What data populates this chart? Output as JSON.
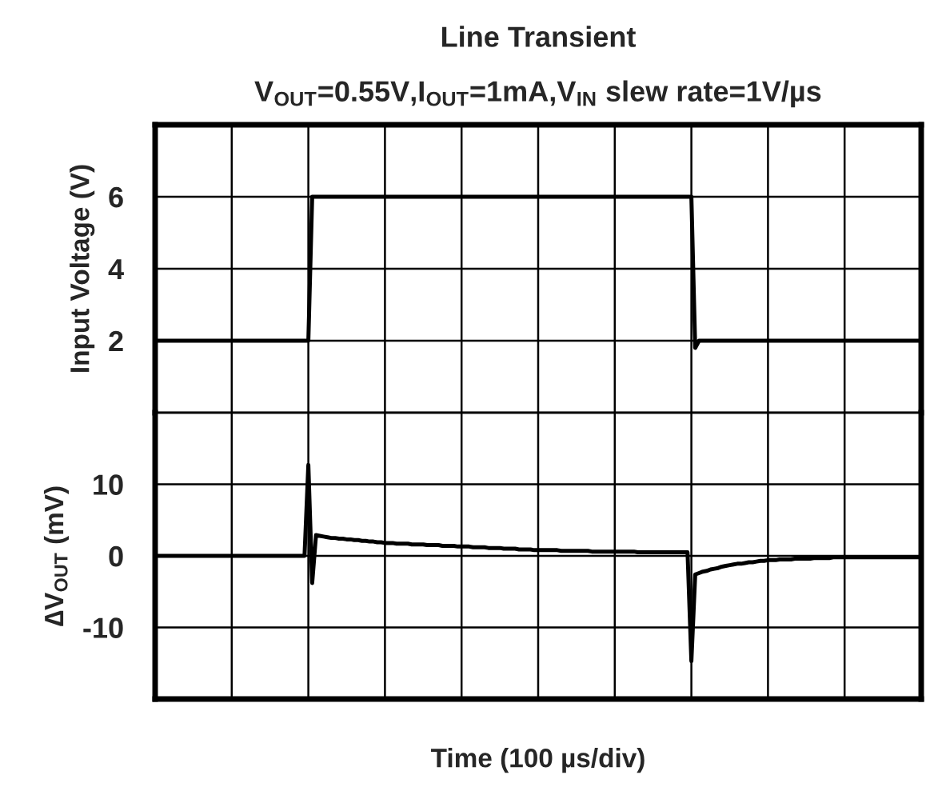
{
  "chart_data": [
    {
      "type": "line",
      "title": "Line Transient",
      "subtitle": "V$_{OUT}$=0.55V,I$_{OUT}$=1mA,V$_{IN}$ slew rate=1V/µs",
      "ylabel": "Input Voltage (V)",
      "categories": [
        null,
        null,
        null,
        null,
        null,
        null,
        null,
        null,
        null,
        null,
        null,
        null,
        null,
        null,
        null,
        null,
        null,
        null,
        null,
        null,
        null,
        null,
        null,
        null,
        null,
        null,
        null,
        null,
        null,
        null,
        null,
        null,
        null,
        null,
        null,
        null,
        null,
        null,
        null,
        null,
        null,
        null,
        null,
        null,
        null,
        null,
        null,
        null,
        null,
        null,
        null,
        null,
        null,
        null,
        null,
        null,
        null,
        null,
        null,
        null,
        null,
        null,
        null,
        null,
        null,
        null,
        null,
        null,
        null,
        null,
        null,
        null,
        null,
        null,
        null,
        null,
        null,
        null,
        null,
        null,
        null,
        null,
        null,
        null,
        null,
        null,
        null,
        null,
        null,
        null,
        null,
        null,
        null,
        null,
        null,
        null,
        null,
        null,
        null,
        null,
        null,
        null,
        null,
        null,
        null,
        null,
        null,
        null,
        null,
        null,
        null,
        null,
        null,
        null,
        null,
        null,
        null,
        null,
        null,
        null,
        null,
        null,
        null,
        null,
        null,
        null,
        null,
        null,
        null,
        null,
        null,
        null,
        null,
        null,
        null,
        null,
        null,
        null,
        null,
        null,
        null,
        null,
        null,
        null,
        null,
        null,
        null,
        null,
        null,
        null,
        null,
        null,
        null,
        null,
        null,
        null,
        null,
        null,
        null,
        null,
        null,
        null,
        null,
        null,
        null,
        null,
        null,
        null,
        null,
        null,
        null,
        null,
        null,
        null,
        null,
        null,
        null,
        null,
        null,
        null,
        null,
        null,
        null,
        null,
        null,
        null,
        null,
        null,
        null,
        null,
        null,
        null,
        null,
        null,
        null,
        null,
        null,
        null,
        null,
        null,
        null
      ],
      "ylim": [
        0,
        8
      ],
      "yticks": [
        {
          "value": 0,
          "label": null
        },
        2,
        4,
        6,
        {
          "value": 8,
          "label": null
        }
      ],
      "tick_labels": "y",
      "grid": true,
      "series": [
        {
          "color": "#000000",
          "values": [
            2,
            2,
            2,
            2,
            2,
            2,
            2,
            2,
            2,
            2,
            2,
            2,
            2,
            2,
            2,
            2,
            2,
            2,
            2,
            2,
            2,
            2,
            2,
            2,
            2,
            2,
            2,
            2,
            2,
            2,
            2,
            2,
            2,
            2,
            2,
            2,
            2,
            2,
            2,
            2,
            2,
            6,
            6,
            6,
            6,
            6,
            6,
            6,
            6,
            6,
            6,
            6,
            6,
            6,
            6,
            6,
            6,
            6,
            6,
            6,
            6,
            6,
            6,
            6,
            6,
            6,
            6,
            6,
            6,
            6,
            6,
            6,
            6,
            6,
            6,
            6,
            6,
            6,
            6,
            6,
            6,
            6,
            6,
            6,
            6,
            6,
            6,
            6,
            6,
            6,
            6,
            6,
            6,
            6,
            6,
            6,
            6,
            6,
            6,
            6,
            6,
            6,
            6,
            6,
            6,
            6,
            6,
            6,
            6,
            6,
            6,
            6,
            6,
            6,
            6,
            6,
            6,
            6,
            6,
            6,
            6,
            6,
            6,
            6,
            6,
            6,
            6,
            6,
            6,
            6,
            6,
            6,
            6,
            6,
            6,
            6,
            6,
            6,
            6,
            6,
            6,
            1.8,
            2,
            2,
            2,
            2,
            2,
            2,
            2,
            2,
            2,
            2,
            2,
            2,
            2,
            2,
            2,
            2,
            2,
            2,
            2,
            2,
            2,
            2,
            2,
            2,
            2,
            2,
            2,
            2,
            2,
            2,
            2,
            2,
            2,
            2,
            2,
            2,
            2,
            2,
            2,
            2,
            2,
            2,
            2,
            2,
            2,
            2,
            2,
            2,
            2,
            2,
            2,
            2,
            2,
            2,
            2,
            2,
            2,
            2,
            2
          ]
        }
      ]
    },
    {
      "type": "line",
      "xlabel": "Time (100 µs/div)",
      "ylabel": "∆V$_{OUT}$ (mV)",
      "categories": [
        null,
        null,
        null,
        null,
        null,
        null,
        null,
        null,
        null,
        null,
        null,
        null,
        null,
        null,
        null,
        null,
        null,
        null,
        null,
        null,
        null,
        null,
        null,
        null,
        null,
        null,
        null,
        null,
        null,
        null,
        null,
        null,
        null,
        null,
        null,
        null,
        null,
        null,
        null,
        null,
        null,
        null,
        null,
        null,
        null,
        null,
        null,
        null,
        null,
        null,
        null,
        null,
        null,
        null,
        null,
        null,
        null,
        null,
        null,
        null,
        null,
        null,
        null,
        null,
        null,
        null,
        null,
        null,
        null,
        null,
        null,
        null,
        null,
        null,
        null,
        null,
        null,
        null,
        null,
        null,
        null,
        null,
        null,
        null,
        null,
        null,
        null,
        null,
        null,
        null,
        null,
        null,
        null,
        null,
        null,
        null,
        null,
        null,
        null,
        null,
        null,
        null,
        null,
        null,
        null,
        null,
        null,
        null,
        null,
        null,
        null,
        null,
        null,
        null,
        null,
        null,
        null,
        null,
        null,
        null,
        null,
        null,
        null,
        null,
        null,
        null,
        null,
        null,
        null,
        null,
        null,
        null,
        null,
        null,
        null,
        null,
        null,
        null,
        null,
        null,
        null,
        null,
        null,
        null,
        null,
        null,
        null,
        null,
        null,
        null,
        null,
        null,
        null,
        null,
        null,
        null,
        null,
        null,
        null,
        null,
        null,
        null,
        null,
        null,
        null,
        null,
        null,
        null,
        null,
        null,
        null,
        null,
        null,
        null,
        null,
        null,
        null,
        null,
        null,
        null,
        null,
        null,
        null,
        null,
        null,
        null,
        null,
        null,
        null,
        null,
        null,
        null,
        null,
        null,
        null,
        null,
        null,
        null,
        null,
        null,
        null
      ],
      "ylim": [
        -20,
        20
      ],
      "yticks": [
        -10,
        0,
        10,
        {
          "value": 20,
          "label": null
        }
      ],
      "tick_labels": "y",
      "grid": true,
      "series": [
        {
          "color": "#000000",
          "values": [
            0,
            0,
            0,
            0,
            0,
            0,
            0,
            0,
            0,
            0,
            0,
            0,
            0,
            0,
            0,
            0,
            0,
            0,
            0,
            0,
            0,
            0,
            0,
            0,
            0,
            0,
            0,
            0,
            0,
            0,
            0,
            0,
            0,
            0,
            0,
            0,
            0,
            0,
            0,
            0,
            12.7,
            -3.8,
            2.9,
            2.8,
            2.7,
            2.6,
            2.5,
            2.5,
            2.4,
            2.4,
            2.3,
            2.3,
            2.2,
            2.2,
            2.1,
            2.1,
            2.0,
            2.0,
            1.9,
            1.9,
            1.8,
            1.8,
            1.8,
            1.7,
            1.7,
            1.7,
            1.7,
            1.6,
            1.6,
            1.6,
            1.6,
            1.5,
            1.5,
            1.5,
            1.5,
            1.4,
            1.4,
            1.4,
            1.4,
            1.3,
            1.3,
            1.3,
            1.3,
            1.2,
            1.2,
            1.2,
            1.2,
            1.1,
            1.1,
            1.1,
            1.1,
            1.0,
            1.0,
            1.0,
            1.0,
            0.9,
            0.9,
            0.9,
            0.9,
            0.8,
            0.8,
            0.8,
            0.8,
            0.8,
            0.8,
            0.8,
            0.7,
            0.7,
            0.7,
            0.7,
            0.7,
            0.7,
            0.7,
            0.7,
            0.6,
            0.6,
            0.6,
            0.6,
            0.6,
            0.6,
            0.6,
            0.6,
            0.6,
            0.6,
            0.6,
            0.6,
            0.5,
            0.5,
            0.5,
            0.5,
            0.5,
            0.5,
            0.5,
            0.5,
            0.5,
            0.5,
            0.5,
            0.5,
            0.5,
            0.5,
            -14.7,
            -2.6,
            -2.4,
            -2.2,
            -2.1,
            -1.9,
            -1.8,
            -1.7,
            -1.5,
            -1.4,
            -1.3,
            -1.2,
            -1.1,
            -1.1,
            -1.0,
            -0.9,
            -0.9,
            -0.8,
            -0.7,
            -0.7,
            -0.6,
            -0.6,
            -0.6,
            -0.5,
            -0.5,
            -0.5,
            -0.5,
            -0.4,
            -0.4,
            -0.4,
            -0.4,
            -0.4,
            -0.3,
            -0.3,
            -0.3,
            -0.3,
            -0.3,
            -0.2,
            -0.2,
            -0.2,
            -0.2,
            -0.2,
            -0.2,
            -0.2,
            -0.2,
            -0.2,
            -0.2,
            -0.2,
            -0.2,
            -0.2,
            -0.2,
            -0.2,
            -0.2,
            -0.2,
            -0.2,
            -0.2,
            -0.2,
            -0.2,
            -0.2,
            -0.2,
            -0.2
          ]
        }
      ]
    }
  ]
}
